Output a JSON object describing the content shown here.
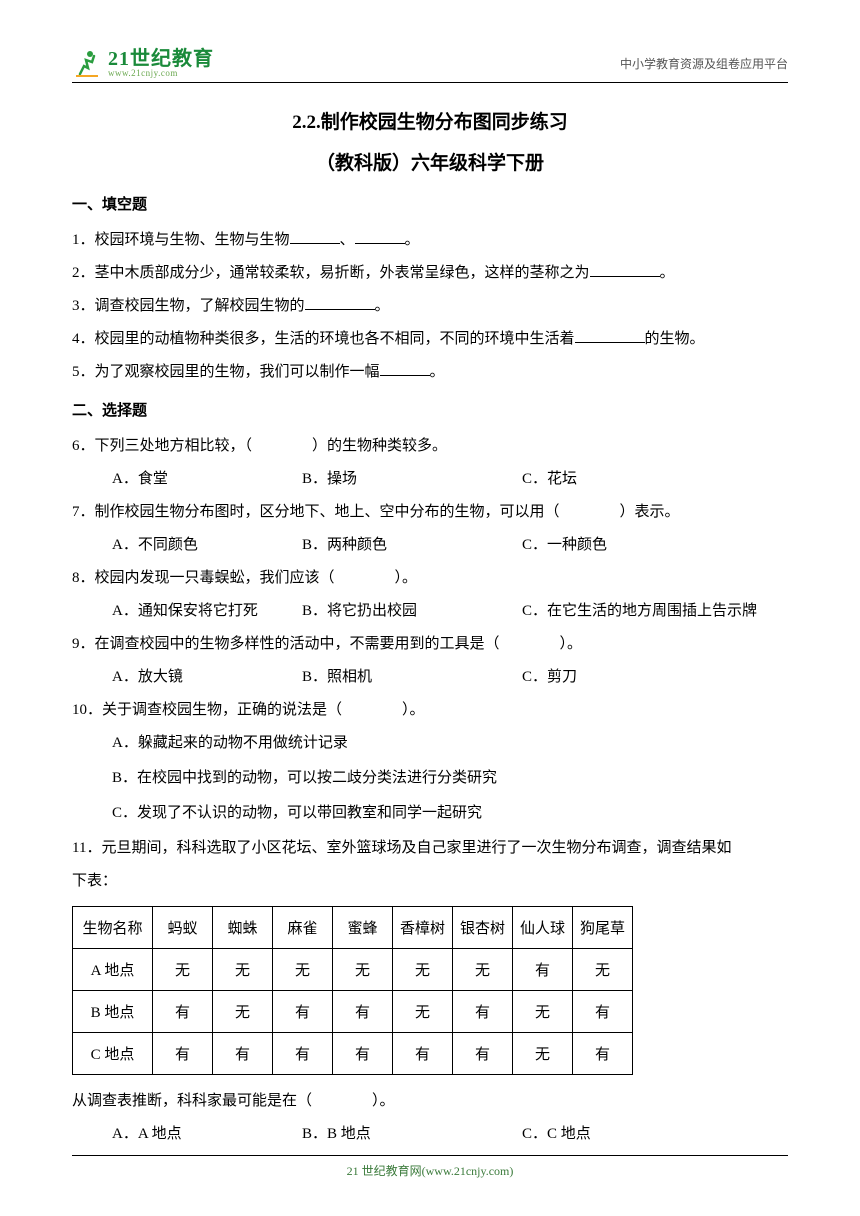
{
  "header": {
    "logo_main": "21世纪教育",
    "logo_sub": "www.21cnjy.com",
    "right_text": "中小学教育资源及组卷应用平台"
  },
  "title": {
    "main": "2.2.制作校园生物分布图同步练习",
    "sub": "（教科版）六年级科学下册"
  },
  "section1_heading": "一、填空题",
  "q1": "1．校园环境与生物、生物与生物",
  "q1_sep": "、",
  "q1_end": "。",
  "q2": "2．茎中木质部成分少，通常较柔软，易折断，外表常呈绿色，这样的茎称之为",
  "q2_end": "。",
  "q3": "3．调查校园生物，了解校园生物的",
  "q3_end": "。",
  "q4": "4．校园里的动植物种类很多，生活的环境也各不相同，不同的环境中生活着",
  "q4_end": "的生物。",
  "q5": "5．为了观察校园里的生物，我们可以制作一幅",
  "q5_end": "。",
  "section2_heading": "二、选择题",
  "q6": "6．下列三处地方相比较，（　　　　）的生物种类较多。",
  "q6a": "A．食堂",
  "q6b": "B．操场",
  "q6c": "C．花坛",
  "q7": "7．制作校园生物分布图时，区分地下、地上、空中分布的生物，可以用（　　　　）表示。",
  "q7a": "A．不同颜色",
  "q7b": "B．两种颜色",
  "q7c": "C．一种颜色",
  "q8": "8．校园内发现一只毒蜈蚣，我们应该（　　　　）。",
  "q8a": "A．通知保安将它打死",
  "q8b": "B．将它扔出校园",
  "q8c": "C．在它生活的地方周围插上告示牌",
  "q9": "9．在调查校园中的生物多样性的活动中，不需要用到的工具是（　　　　）。",
  "q9a": "A．放大镜",
  "q9b": "B．照相机",
  "q9c": "C．剪刀",
  "q10": "10．关于调查校园生物，正确的说法是（　　　　）。",
  "q10a": "A．躲藏起来的动物不用做统计记录",
  "q10b": "B．在校园中找到的动物，可以按二歧分类法进行分类研究",
  "q10c": "C．发现了不认识的动物，可以带回教室和同学一起研究",
  "q11_p1": "11．元旦期间，科科选取了小区花坛、室外篮球场及自己家里进行了一次生物分布调查，调查结果如",
  "q11_p2": "下表：",
  "table": {
    "columns": [
      "生物名称",
      "蚂蚁",
      "蜘蛛",
      "麻雀",
      "蜜蜂",
      "香樟树",
      "银杏树",
      "仙人球",
      "狗尾草"
    ],
    "rows": [
      [
        "A 地点",
        "无",
        "无",
        "无",
        "无",
        "无",
        "无",
        "有",
        "无"
      ],
      [
        "B 地点",
        "有",
        "无",
        "有",
        "有",
        "无",
        "有",
        "无",
        "有"
      ],
      [
        "C 地点",
        "有",
        "有",
        "有",
        "有",
        "有",
        "有",
        "无",
        "有"
      ]
    ],
    "cell_border_color": "#000000",
    "cell_padding": "10px 6px",
    "font_size": 15
  },
  "q11_after": "从调查表推断，科科家最可能是在（　　　　）。",
  "q11a": "A．A 地点",
  "q11b": "B．B 地点",
  "q11c": "C．C 地点",
  "footer": {
    "text": "21 世纪教育网(www.21cnjy.com)"
  },
  "colors": {
    "logo_green": "#1a8a3a",
    "logo_sub_green": "#6aa84f",
    "footer_green": "#3a7a3a",
    "text": "#000000",
    "header_right": "#555555",
    "background": "#ffffff"
  }
}
